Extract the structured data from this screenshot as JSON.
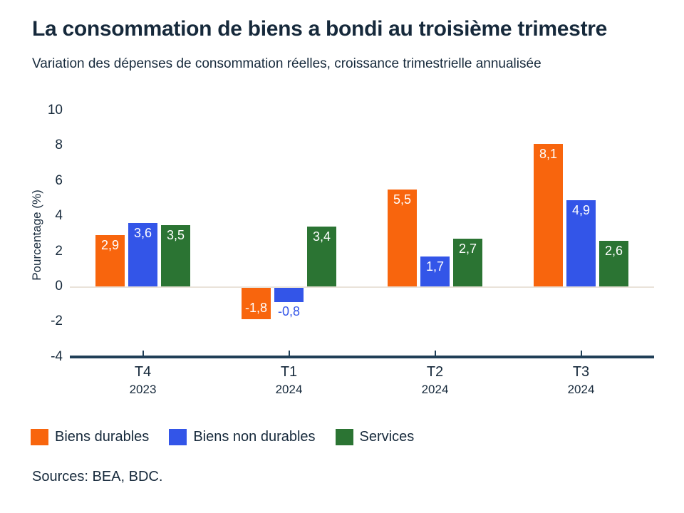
{
  "chart_data": {
    "type": "bar",
    "title": "La consommation de biens a bondi au troisième trimestre",
    "subtitle": "Variation des dépenses de consommation réelles, croissance trimestrielle annualisée",
    "ylabel": "Pourcentage (%)",
    "xlabel": "",
    "ylim": [
      -4,
      10
    ],
    "yticks": [
      10,
      8,
      6,
      4,
      2,
      0,
      -2,
      -4
    ],
    "grid": false,
    "legend_position": "bottom",
    "zero_line_color": "#EAE3DA",
    "axis_color": "#203F57",
    "text_color": "#16293B",
    "categories": [
      "T4",
      "T1",
      "T2",
      "T3"
    ],
    "category_years": [
      "2023",
      "2024",
      "2024",
      "2024"
    ],
    "series": [
      {
        "name": "Biens durables",
        "color": "#F8650D",
        "values": [
          2.9,
          -1.8,
          5.5,
          8.1
        ]
      },
      {
        "name": "Biens non durables",
        "color": "#3355E8",
        "values": [
          3.6,
          -0.8,
          1.7,
          4.9
        ]
      },
      {
        "name": "Services",
        "color": "#2B7433",
        "values": [
          3.5,
          3.4,
          2.7,
          2.6
        ]
      }
    ]
  },
  "footer": {
    "sources": "Sources: BEA, BDC."
  }
}
